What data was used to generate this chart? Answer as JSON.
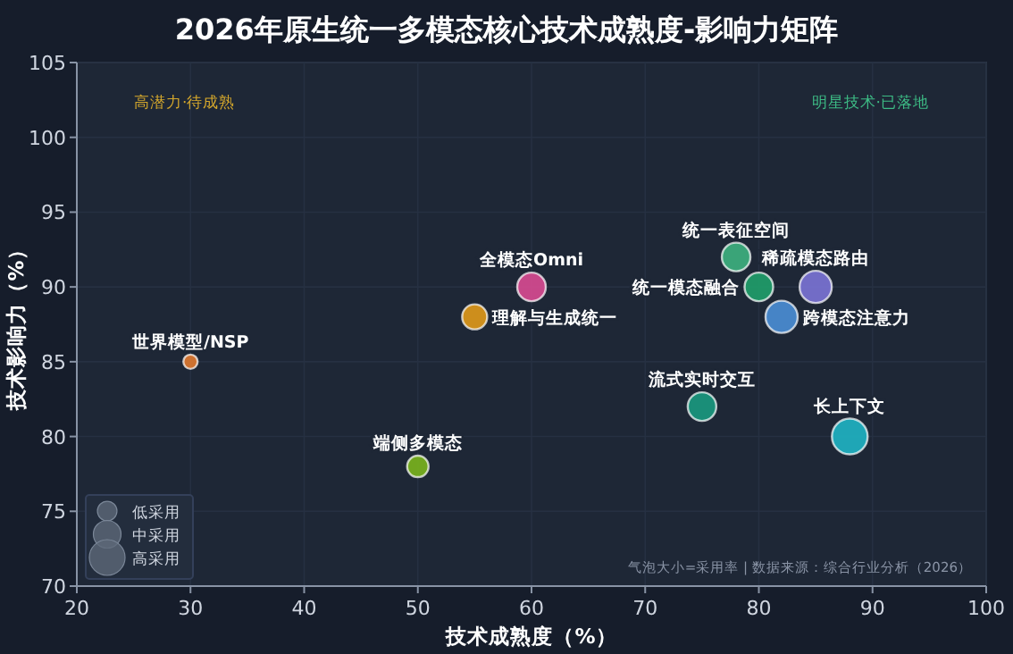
{
  "chart_data": {
    "type": "bubble",
    "title": "2026年原生统一多模态核心技术成熟度-影响力矩阵",
    "xlabel": "技术成熟度（%）",
    "ylabel": "技术影响力（%）",
    "xlim": [
      20,
      100
    ],
    "xticks": [
      20,
      30,
      40,
      50,
      60,
      70,
      80,
      90,
      100
    ],
    "ylim": [
      70,
      105
    ],
    "yticks": [
      70,
      75,
      80,
      85,
      90,
      95,
      100,
      105
    ],
    "grid": true,
    "legend": "bottom left",
    "size_legend": [
      {
        "value": 0.3,
        "label": "低采用"
      },
      {
        "value": 0.6,
        "label": "中采用"
      },
      {
        "value": 1,
        "label": "高采用"
      }
    ],
    "annotations": [
      "高潜力·待成熟",
      "明星技术·已落地",
      "气泡大小=采用率 | 数据来源：综合行业分析（2026）"
    ],
    "series": [
      {
        "name": "统一表征空间",
        "color": "#3db37f",
        "x": [
          78
        ],
        "values": [
          92
        ],
        "sizes": [
          0.64
        ]
      },
      {
        "name": "统一模态融合",
        "color": "#1fa06a",
        "x": [
          80
        ],
        "values": [
          90
        ],
        "sizes": [
          0.64
        ]
      },
      {
        "name": "稀疏模态路由",
        "color": "#7b74d6",
        "x": [
          85
        ],
        "values": [
          90
        ],
        "sizes": [
          0.81
        ]
      },
      {
        "name": "跨模态注意力",
        "color": "#4a8fd6",
        "x": [
          82
        ],
        "values": [
          88
        ],
        "sizes": [
          0.81
        ]
      },
      {
        "name": "流式实时交互",
        "color": "#1a9a80",
        "x": [
          75
        ],
        "values": [
          82
        ],
        "sizes": [
          0.64
        ]
      },
      {
        "name": "长上下文",
        "color": "#1fb5c4",
        "x": [
          88
        ],
        "values": [
          80
        ],
        "sizes": [
          1
        ]
      },
      {
        "name": "全模态Omni",
        "color": "#d94b92",
        "x": [
          60
        ],
        "values": [
          90
        ],
        "sizes": [
          0.64
        ]
      },
      {
        "name": "理解与生成统一",
        "color": "#e09a1a",
        "x": [
          55
        ],
        "values": [
          88
        ],
        "sizes": [
          0.49
        ]
      },
      {
        "name": "世界模型/NSP",
        "color": "#e07a30",
        "x": [
          30
        ],
        "values": [
          85
        ],
        "sizes": [
          0.16
        ]
      },
      {
        "name": "端侧多模态",
        "color": "#7ab51d",
        "x": [
          50
        ],
        "values": [
          78
        ],
        "sizes": [
          0.36
        ]
      }
    ]
  }
}
